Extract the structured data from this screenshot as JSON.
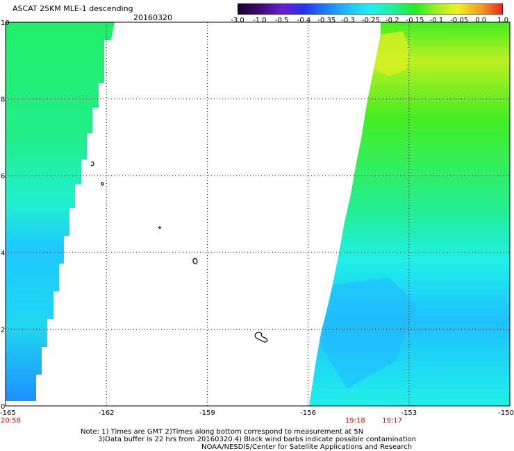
{
  "header": {
    "title": "ASCAT 25KM MLE-1 descending",
    "date": "20160320"
  },
  "colorbar": {
    "tick_labels": [
      "-3.0",
      "-1.0",
      "-0.5",
      "-0.4",
      "-0.35",
      "-0.3",
      "-0.25",
      "-0.2",
      "-0.15",
      "-0.1",
      "-0.05",
      "0.0",
      "1.0"
    ],
    "colors": [
      "#000000",
      "#3b0a6e",
      "#6a1fd0",
      "#2233ee",
      "#1e7cff",
      "#1fc0ff",
      "#1ff0f0",
      "#1ff0a0",
      "#22ee22",
      "#9cf022",
      "#f0f022",
      "#f09a22",
      "#ee2222"
    ]
  },
  "map": {
    "lat_labels": [
      "10",
      "8",
      "6",
      "4",
      "2",
      "0"
    ],
    "lon_labels": [
      "-165",
      "-162",
      "-159",
      "-156",
      "-153",
      "-150"
    ],
    "lat_range": [
      0,
      10
    ],
    "lon_range": [
      -165,
      -150
    ],
    "pass_times": [
      {
        "label": "20:58",
        "lon": -165
      },
      {
        "label": "19:18",
        "lon": -154.6
      },
      {
        "label": "19:17",
        "lon": -153.5
      }
    ]
  },
  "notes": {
    "line1": "Note: 1) Times are GMT 2)Times along bottom correspond to measurement at 5N",
    "line2": "3)Data buffer is 22 hrs from 20160320 4) Black wind barbs indicate possible contamination",
    "line3": "NOAA/NESDIS/Center for Satellite Applications and Research"
  }
}
